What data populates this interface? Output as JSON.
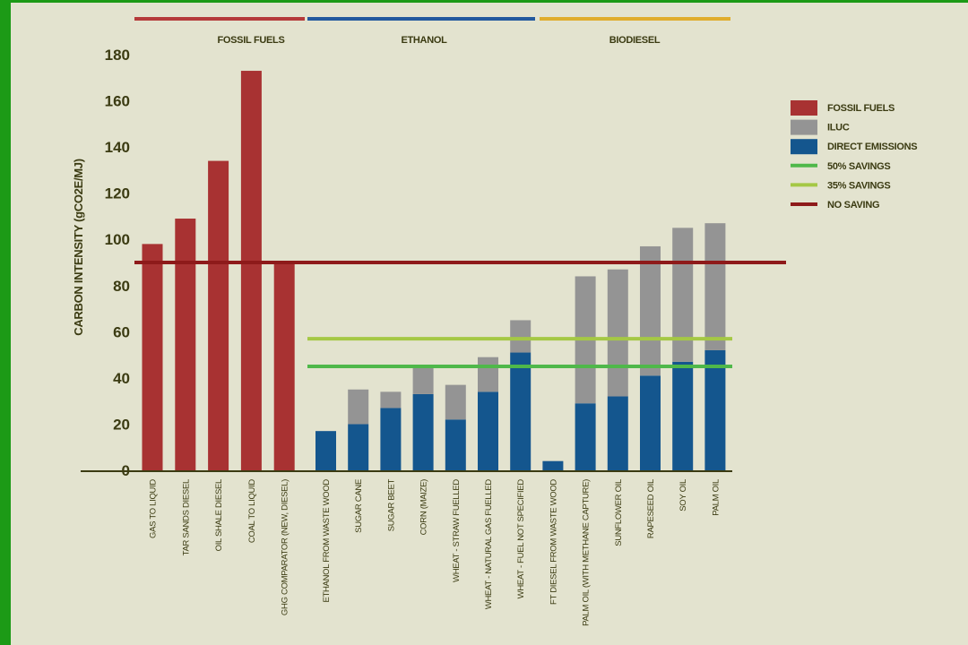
{
  "chart_data": {
    "type": "bar",
    "stacked": true,
    "ylabel": "CARBON INTENSITY (gCO2E/MJ)",
    "ylim": [
      0,
      180
    ],
    "yticks": [
      0,
      20,
      40,
      60,
      80,
      100,
      120,
      140,
      160,
      180
    ],
    "categories": [
      "GAS TO LIQUID",
      "TAR SANDS DIESEL",
      "OIL SHALE DIESEL",
      "COAL TO LIQUID",
      "GHG COMPARATOR (NEW, DIESEL)",
      "ETHANOL FROM WASTE WOOD",
      "SUGAR CANE",
      "SUGAR BEET",
      "CORN (MAIZE)",
      "WHEAT - STRAW FUELLED",
      "WHEAT - NATURAL GAS FUELLED",
      "WHEAT - FUEL NOT SPECIFIED",
      "FT DIESEL FROM WASTE WOOD",
      "PALM OIL (WITH METHANE CAPTURE)",
      "SUNFLOWER OIL",
      "RAPESEED OIL",
      "SOY OIL",
      "PALM OIL"
    ],
    "series": [
      {
        "name": "FOSSIL FUELS",
        "color": "#a83232",
        "values": [
          98,
          109,
          134,
          173,
          90,
          0,
          0,
          0,
          0,
          0,
          0,
          0,
          0,
          0,
          0,
          0,
          0,
          0
        ]
      },
      {
        "name": "DIRECT EMISSIONS",
        "color": "#14568e",
        "values": [
          0,
          0,
          0,
          0,
          0,
          17,
          20,
          27,
          33,
          22,
          34,
          51,
          4,
          29,
          32,
          41,
          47,
          52
        ]
      },
      {
        "name": "ILUC",
        "color": "#949494",
        "values": [
          0,
          0,
          0,
          0,
          0,
          0,
          15,
          7,
          12,
          15,
          15,
          14,
          0,
          55,
          55,
          56,
          58,
          55
        ]
      }
    ],
    "reference_lines": [
      {
        "name": "NO SAVING",
        "value": 90,
        "color": "#8e1a1a"
      },
      {
        "name": "35% SAVINGS",
        "value": 57,
        "color": "#a5c845"
      },
      {
        "name": "50% SAVINGS",
        "value": 45,
        "color": "#4fb84a"
      }
    ],
    "groups": [
      {
        "label": "FOSSIL FUELS",
        "from": 0,
        "to": 4,
        "color": "#b53a3a"
      },
      {
        "label": "ETHANOL",
        "from": 5,
        "to": 11,
        "color": "#23599e"
      },
      {
        "label": "BIODIESEL",
        "from": 12,
        "to": 17,
        "color": "#e0ad2c"
      }
    ],
    "legend": {
      "placement": "right",
      "items": [
        {
          "label": "FOSSIL FUELS",
          "kind": "box",
          "color": "#a83232"
        },
        {
          "label": "ILUC",
          "kind": "box",
          "color": "#949494"
        },
        {
          "label": "DIRECT EMISSIONS",
          "kind": "box",
          "color": "#14568e"
        },
        {
          "label": "50% SAVINGS",
          "kind": "line",
          "color": "#4fb84a"
        },
        {
          "label": "35% SAVINGS",
          "kind": "line",
          "color": "#a5c845"
        },
        {
          "label": "NO SAVING",
          "kind": "line",
          "color": "#8e1a1a"
        }
      ]
    }
  }
}
